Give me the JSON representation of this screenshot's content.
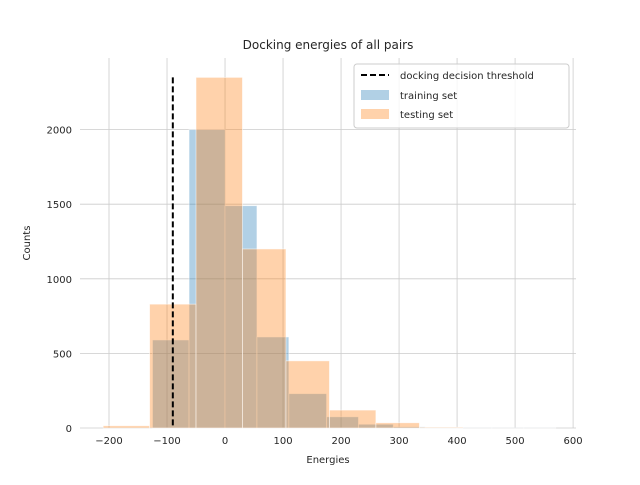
{
  "chart_data": {
    "type": "histogram",
    "title": "Docking energies of all pairs",
    "xlabel": "Energies",
    "ylabel": "Counts",
    "xlim": [
      -250,
      605
    ],
    "ylim": [
      0,
      2480
    ],
    "grid": true,
    "legend_position": "top-right",
    "x_ticks": [
      -200,
      -100,
      0,
      100,
      200,
      300,
      400,
      500,
      600
    ],
    "x_tick_labels": [
      "−200",
      "−100",
      "0",
      "100",
      "200",
      "300",
      "400",
      "500",
      "600"
    ],
    "y_ticks": [
      0,
      500,
      1000,
      1500,
      2000
    ],
    "y_tick_labels": [
      "0",
      "500",
      "1000",
      "1500",
      "2000"
    ],
    "threshold": {
      "name": "docking decision threshold",
      "x": -90,
      "y_top": 2350,
      "color": "#000000",
      "style": "dashed"
    },
    "series": [
      {
        "name": "training set",
        "color": "#1f77b4",
        "bins": [
          [
            -125,
            -62,
            590
          ],
          [
            -62,
            0,
            2000
          ],
          [
            0,
            55,
            1490
          ],
          [
            55,
            110,
            610
          ],
          [
            110,
            175,
            230
          ],
          [
            175,
            230,
            75
          ],
          [
            230,
            290,
            25
          ],
          [
            290,
            345,
            8
          ],
          [
            345,
            400,
            3
          ],
          [
            400,
            460,
            1
          ],
          [
            460,
            515,
            1
          ],
          [
            515,
            570,
            1
          ]
        ]
      },
      {
        "name": "testing set",
        "color": "#ff7f0e",
        "bins": [
          [
            -210,
            -130,
            15
          ],
          [
            -130,
            -50,
            830
          ],
          [
            -50,
            30,
            2350
          ],
          [
            30,
            105,
            1200
          ],
          [
            105,
            180,
            450
          ],
          [
            180,
            260,
            120
          ],
          [
            260,
            335,
            35
          ],
          [
            335,
            410,
            5
          ]
        ]
      }
    ]
  }
}
